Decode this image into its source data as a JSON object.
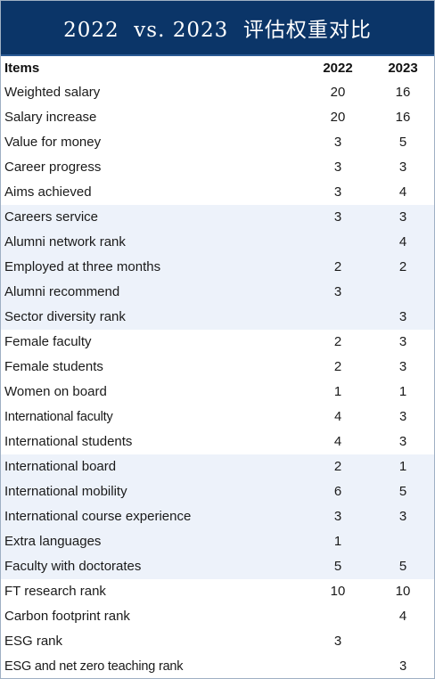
{
  "title": "2022  vs. 2023  评估权重对比",
  "headers": {
    "items": "Items",
    "col_a": "2022",
    "col_b": "2023"
  },
  "rows": [
    {
      "item": "Weighted salary",
      "y2022": "20",
      "y2023": "16"
    },
    {
      "item": "Salary increase",
      "y2022": "20",
      "y2023": "16"
    },
    {
      "item": "Value for money",
      "y2022": "3",
      "y2023": "5"
    },
    {
      "item": "Career progress",
      "y2022": "3",
      "y2023": "3"
    },
    {
      "item": "Aims achieved",
      "y2022": "3",
      "y2023": "4"
    },
    {
      "item": "Careers service",
      "y2022": "3",
      "y2023": "3"
    },
    {
      "item": "Alumni network rank",
      "y2022": "",
      "y2023": "4"
    },
    {
      "item": "Employed at three months",
      "y2022": "2",
      "y2023": "2"
    },
    {
      "item": "Alumni recommend",
      "y2022": "3",
      "y2023": ""
    },
    {
      "item": "Sector diversity rank",
      "y2022": "",
      "y2023": "3"
    },
    {
      "item": "Female faculty",
      "y2022": "2",
      "y2023": "3"
    },
    {
      "item": "Female students",
      "y2022": "2",
      "y2023": "3"
    },
    {
      "item": "Women on board",
      "y2022": "1",
      "y2023": "1"
    },
    {
      "item": "International faculty",
      "y2022": "4",
      "y2023": "3"
    },
    {
      "item": "International students",
      "y2022": "4",
      "y2023": "3"
    },
    {
      "item": "International board",
      "y2022": "2",
      "y2023": "1"
    },
    {
      "item": "International mobility",
      "y2022": "6",
      "y2023": "5"
    },
    {
      "item": "International course experience",
      "y2022": "3",
      "y2023": "3"
    },
    {
      "item": "Extra languages",
      "y2022": "1",
      "y2023": ""
    },
    {
      "item": "Faculty with doctorates",
      "y2022": "5",
      "y2023": "5"
    },
    {
      "item": "FT research rank",
      "y2022": "10",
      "y2023": "10"
    },
    {
      "item": "Carbon footprint rank",
      "y2022": "",
      "y2023": "4"
    },
    {
      "item": "ESG rank",
      "y2022": "3",
      "y2023": ""
    },
    {
      "item": "ESG and net zero teaching rank",
      "y2022": "",
      "y2023": "3"
    }
  ],
  "colors": {
    "title_bg": "#0b3568",
    "title_text": "#ffffff",
    "shaded_row": "#edf2fa"
  }
}
